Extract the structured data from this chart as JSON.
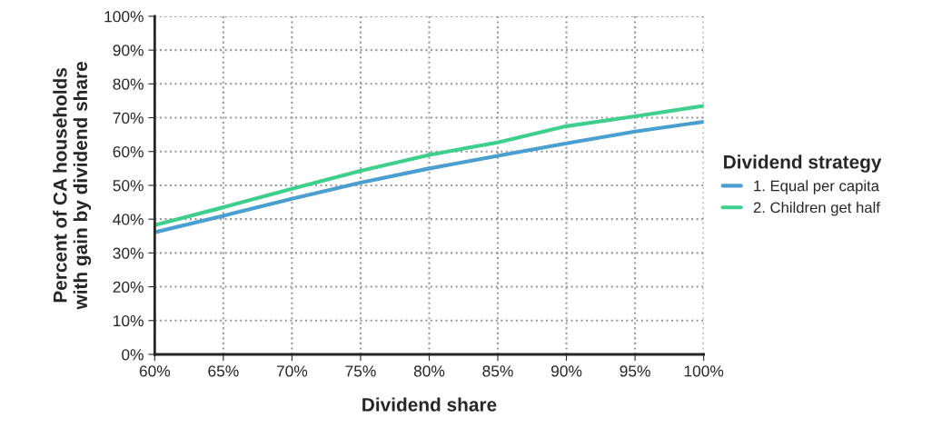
{
  "chart_data": {
    "type": "line",
    "xlabel": "Dividend share",
    "ylabel": "Percent of CA households\nwith gain by dividend share",
    "legend_title": "Dividend strategy",
    "x": [
      60,
      65,
      70,
      75,
      80,
      85,
      90,
      95,
      100
    ],
    "series": [
      {
        "name": "1. Equal per capita",
        "color": "#4a9fd0",
        "values": [
          36.1,
          41,
          46,
          50.8,
          55,
          58.7,
          62.4,
          65.9,
          68.8
        ]
      },
      {
        "name": "2. Children get half",
        "color": "#3ecf8e",
        "values": [
          38.2,
          43.5,
          49,
          54.3,
          59,
          62.7,
          67.5,
          70.4,
          73.5
        ]
      }
    ],
    "xlim": [
      60,
      100
    ],
    "ylim": [
      0,
      100
    ],
    "xticks": [
      {
        "value": 60,
        "label": "60%"
      },
      {
        "value": 65,
        "label": "65%"
      },
      {
        "value": 70,
        "label": "70%"
      },
      {
        "value": 75,
        "label": "75%"
      },
      {
        "value": 80,
        "label": "80%"
      },
      {
        "value": 85,
        "label": "85%"
      },
      {
        "value": 90,
        "label": "90%"
      },
      {
        "value": 95,
        "label": "95%"
      },
      {
        "value": 100,
        "label": "100%"
      }
    ],
    "yticks": [
      {
        "value": 0,
        "label": "0%"
      },
      {
        "value": 10,
        "label": "10%"
      },
      {
        "value": 20,
        "label": "20%"
      },
      {
        "value": 30,
        "label": "30%"
      },
      {
        "value": 40,
        "label": "40%"
      },
      {
        "value": 50,
        "label": "50%"
      },
      {
        "value": 60,
        "label": "60%"
      },
      {
        "value": 70,
        "label": "70%"
      },
      {
        "value": 80,
        "label": "80%"
      },
      {
        "value": 90,
        "label": "90%"
      },
      {
        "value": 100,
        "label": "100%"
      }
    ],
    "grid": true,
    "legend": "right",
    "marker": "none",
    "line_style": "solid"
  }
}
